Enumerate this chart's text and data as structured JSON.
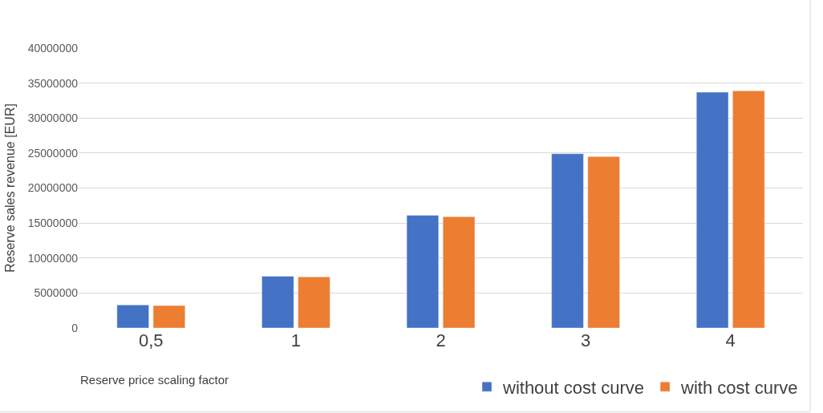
{
  "chart_data": {
    "type": "bar",
    "categories": [
      "0,5",
      "1",
      "2",
      "3",
      "4"
    ],
    "xlabel": "Reserve price scaling factor",
    "ylabel": "Reserve sales revenue [EUR]",
    "series": [
      {
        "name": "without cost curve",
        "color": "#4472c4",
        "values": [
          3300000,
          7400000,
          16100000,
          24900000,
          33700000
        ]
      },
      {
        "name": "with cost curve",
        "color": "#ed7d31",
        "values": [
          3200000,
          7300000,
          15900000,
          24500000,
          33900000
        ]
      }
    ],
    "ylim": [
      0,
      40000000
    ],
    "yticks": [
      0,
      5000000,
      10000000,
      15000000,
      20000000,
      25000000,
      30000000,
      35000000,
      40000000
    ],
    "grid": "y",
    "legend": "bottom right"
  }
}
